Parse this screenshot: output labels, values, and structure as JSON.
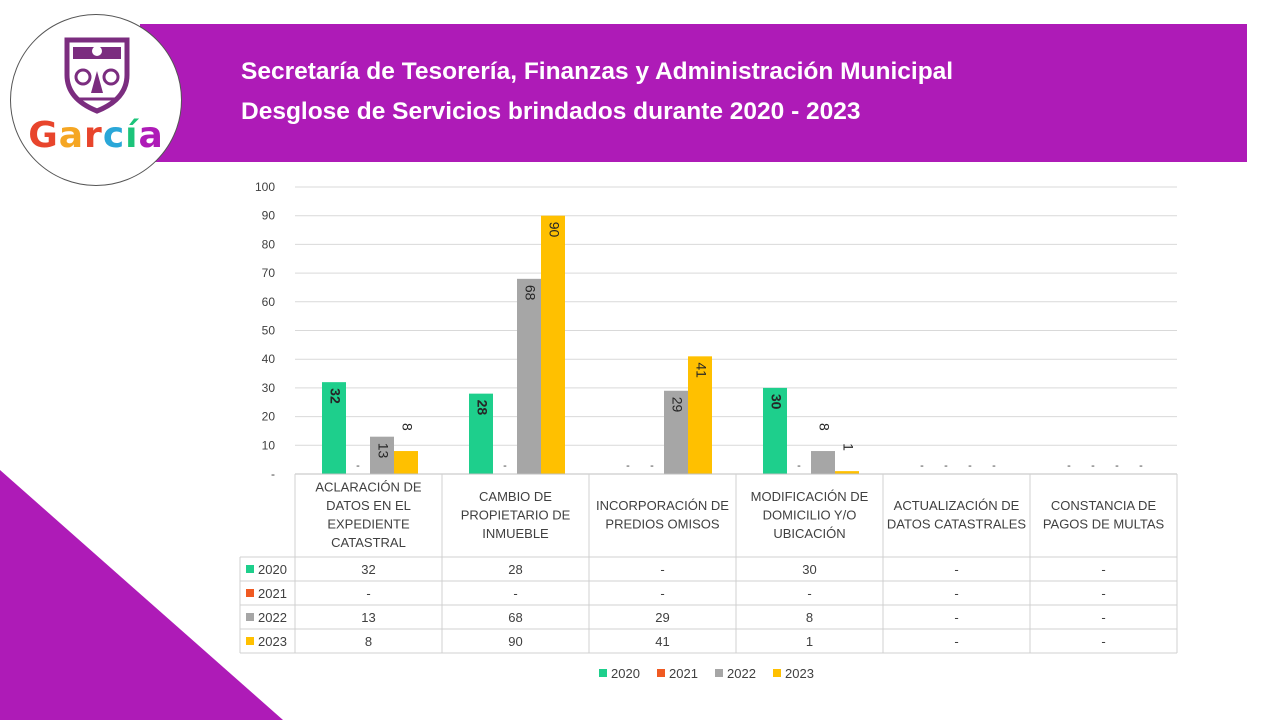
{
  "header": {
    "title_line1": "Secretaría de Tesorería, Finanzas y Administración Municipal",
    "title_line2": "Desglose de Servicios brindados durante 2020 - 2023"
  },
  "logo": {
    "text": "García",
    "letter_colors": [
      "#e8452c",
      "#f5a623",
      "#e8452c",
      "#2aa7d8",
      "#1cc47a",
      "#ae1bb7"
    ]
  },
  "colors": {
    "band": "#ae1bb7",
    "s2020": "#1ecf8c",
    "s2021": "#f05a22",
    "s2022": "#a6a6a6",
    "s2023": "#ffc000"
  },
  "chart_data": {
    "type": "bar",
    "title": "Desglose de Servicios brindados durante 2020 - 2023",
    "categories": [
      [
        "ACLARACIÓN DE",
        "DATOS EN EL",
        "EXPEDIENTE",
        "CATASTRAL"
      ],
      [
        "CAMBIO DE",
        "PROPIETARIO DE",
        "INMUEBLE"
      ],
      [
        "INCORPORACIÓN DE",
        "PREDIOS OMISOS"
      ],
      [
        "MODIFICACIÓN DE",
        "DOMICILIO Y/O",
        "UBICACIÓN"
      ],
      [
        "ACTUALIZACIÓN DE",
        "DATOS CATASTRALES"
      ],
      [
        "CONSTANCIA DE",
        "PAGOS DE MULTAS"
      ]
    ],
    "series": [
      {
        "name": "2020",
        "values": [
          32,
          28,
          null,
          30,
          null,
          null
        ]
      },
      {
        "name": "2021",
        "values": [
          null,
          null,
          null,
          null,
          null,
          null
        ]
      },
      {
        "name": "2022",
        "values": [
          13,
          68,
          29,
          8,
          null,
          null
        ]
      },
      {
        "name": "2023",
        "values": [
          8,
          90,
          41,
          1,
          null,
          null
        ]
      }
    ],
    "ylim": [
      0,
      100
    ],
    "yticks": [
      "-",
      "10",
      "20",
      "30",
      "40",
      "50",
      "60",
      "70",
      "80",
      "90",
      "100"
    ],
    "empty_label": "-",
    "legend_position": "bottom"
  }
}
